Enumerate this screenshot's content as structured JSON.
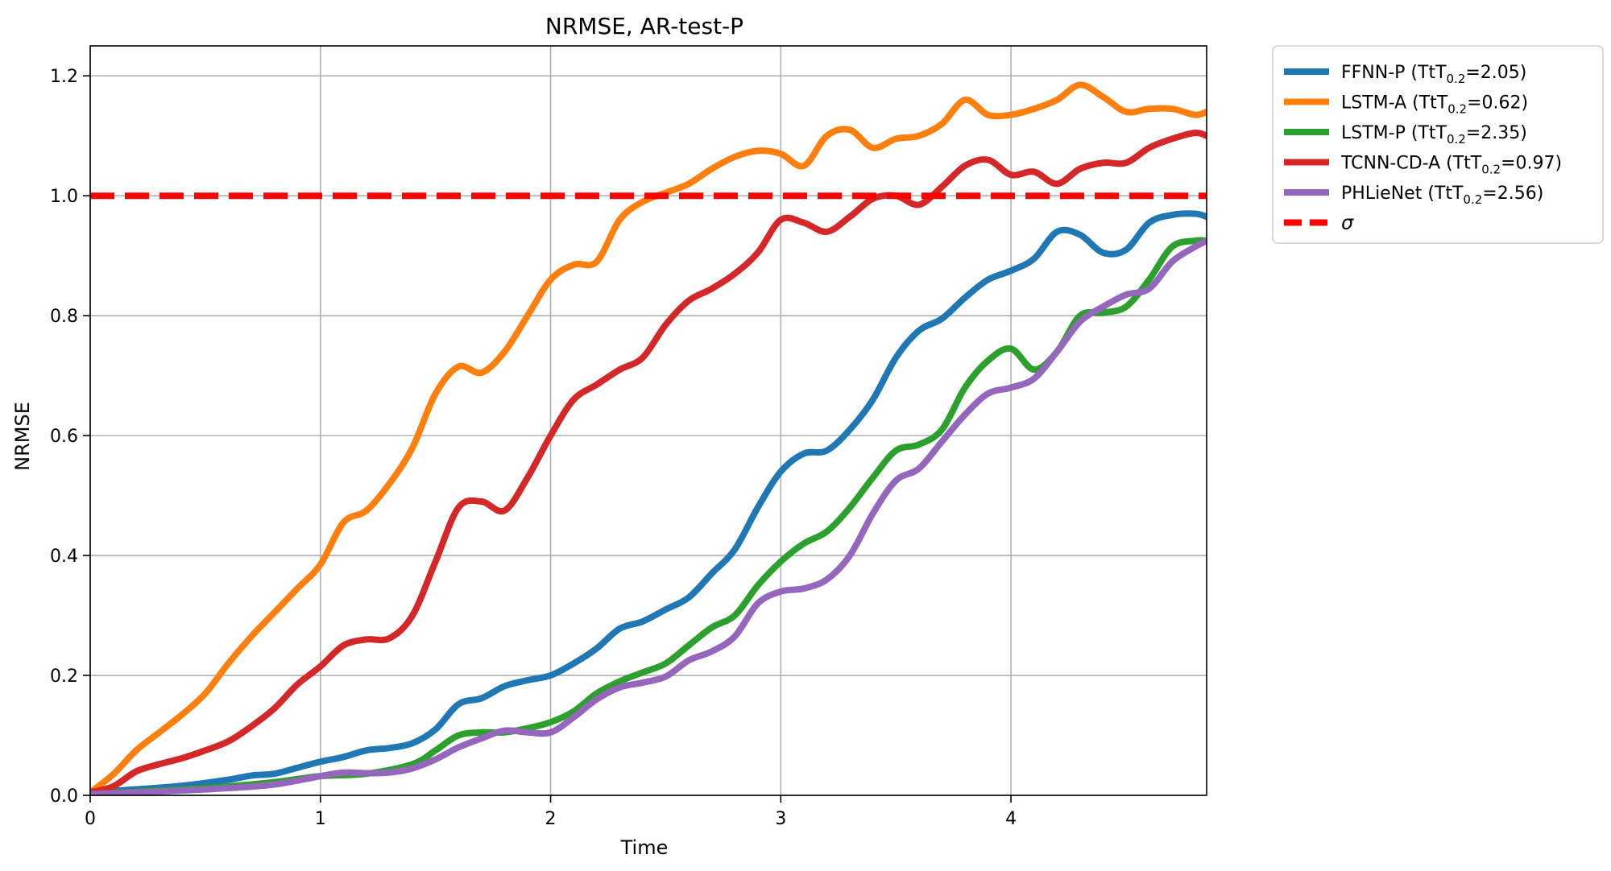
{
  "chart_data": {
    "type": "line",
    "title": "NRMSE, AR-test-P",
    "xlabel": "Time",
    "ylabel": "NRMSE",
    "xlim": [
      0,
      4.85
    ],
    "ylim": [
      0,
      1.25
    ],
    "x_ticks": [
      0,
      1,
      2,
      3,
      4
    ],
    "x_tick_labels": [
      "0",
      "1",
      "2",
      "3",
      "4"
    ],
    "y_ticks": [
      0.0,
      0.2,
      0.4,
      0.6,
      0.8,
      1.0,
      1.2
    ],
    "y_tick_labels": [
      "0.0",
      "0.2",
      "0.4",
      "0.6",
      "0.8",
      "1.0",
      "1.2"
    ],
    "grid": true,
    "legend_position": "outside-top-right",
    "series": [
      {
        "name": "FFNN-P (TtT",
        "tt_subscript": "0.2",
        "tt_value": "=2.05)",
        "color": "#1f77b4",
        "x": [
          0,
          0.2,
          0.4,
          0.6,
          0.7,
          0.8,
          0.9,
          1.0,
          1.1,
          1.2,
          1.3,
          1.4,
          1.5,
          1.6,
          1.7,
          1.8,
          1.9,
          2.0,
          2.1,
          2.2,
          2.3,
          2.4,
          2.5,
          2.6,
          2.7,
          2.8,
          2.9,
          3.0,
          3.1,
          3.2,
          3.3,
          3.4,
          3.5,
          3.6,
          3.7,
          3.8,
          3.9,
          4.0,
          4.1,
          4.2,
          4.3,
          4.4,
          4.5,
          4.6,
          4.7,
          4.8,
          4.85
        ],
        "y": [
          0.005,
          0.01,
          0.016,
          0.026,
          0.033,
          0.036,
          0.046,
          0.056,
          0.064,
          0.075,
          0.079,
          0.087,
          0.11,
          0.152,
          0.162,
          0.182,
          0.192,
          0.2,
          0.22,
          0.245,
          0.278,
          0.29,
          0.31,
          0.33,
          0.37,
          0.41,
          0.48,
          0.54,
          0.57,
          0.575,
          0.61,
          0.66,
          0.73,
          0.775,
          0.795,
          0.83,
          0.86,
          0.875,
          0.895,
          0.94,
          0.935,
          0.905,
          0.91,
          0.955,
          0.968,
          0.97,
          0.965
        ]
      },
      {
        "name": "LSTM-A (TtT",
        "tt_subscript": "0.2",
        "tt_value": "=0.62)",
        "color": "#ff7f0e",
        "x": [
          0,
          0.1,
          0.2,
          0.3,
          0.4,
          0.5,
          0.6,
          0.7,
          0.8,
          0.9,
          1.0,
          1.1,
          1.2,
          1.3,
          1.4,
          1.5,
          1.6,
          1.7,
          1.8,
          1.9,
          2.0,
          2.1,
          2.2,
          2.3,
          2.4,
          2.5,
          2.6,
          2.7,
          2.8,
          2.9,
          3.0,
          3.1,
          3.2,
          3.3,
          3.4,
          3.5,
          3.6,
          3.7,
          3.8,
          3.9,
          4.0,
          4.1,
          4.2,
          4.3,
          4.4,
          4.5,
          4.6,
          4.7,
          4.8,
          4.85
        ],
        "y": [
          0.005,
          0.035,
          0.075,
          0.105,
          0.135,
          0.17,
          0.22,
          0.265,
          0.305,
          0.345,
          0.385,
          0.455,
          0.475,
          0.52,
          0.58,
          0.67,
          0.715,
          0.705,
          0.74,
          0.8,
          0.86,
          0.885,
          0.89,
          0.96,
          0.99,
          1.005,
          1.02,
          1.045,
          1.065,
          1.075,
          1.07,
          1.05,
          1.1,
          1.11,
          1.08,
          1.095,
          1.1,
          1.12,
          1.16,
          1.135,
          1.135,
          1.145,
          1.16,
          1.185,
          1.165,
          1.14,
          1.145,
          1.145,
          1.135,
          1.14
        ]
      },
      {
        "name": "LSTM-P (TtT",
        "tt_subscript": "0.2",
        "tt_value": "=2.35)",
        "color": "#2ca02c",
        "x": [
          0,
          0.2,
          0.4,
          0.6,
          0.8,
          1.0,
          1.2,
          1.4,
          1.5,
          1.6,
          1.7,
          1.8,
          1.9,
          2.0,
          2.1,
          2.2,
          2.3,
          2.4,
          2.5,
          2.6,
          2.7,
          2.8,
          2.9,
          3.0,
          3.1,
          3.2,
          3.3,
          3.4,
          3.5,
          3.6,
          3.7,
          3.8,
          3.9,
          4.0,
          4.1,
          4.2,
          4.3,
          4.4,
          4.5,
          4.6,
          4.7,
          4.8,
          4.85
        ],
        "y": [
          0.003,
          0.006,
          0.01,
          0.015,
          0.022,
          0.032,
          0.036,
          0.052,
          0.075,
          0.1,
          0.105,
          0.105,
          0.112,
          0.122,
          0.14,
          0.17,
          0.19,
          0.205,
          0.22,
          0.25,
          0.28,
          0.3,
          0.35,
          0.39,
          0.42,
          0.44,
          0.48,
          0.53,
          0.575,
          0.585,
          0.61,
          0.68,
          0.725,
          0.745,
          0.71,
          0.74,
          0.8,
          0.805,
          0.815,
          0.86,
          0.915,
          0.925,
          0.925
        ]
      },
      {
        "name": "TCNN-CD-A (TtT",
        "tt_subscript": "0.2",
        "tt_value": "=0.97)",
        "color": "#d62728",
        "x": [
          0,
          0.1,
          0.2,
          0.3,
          0.4,
          0.5,
          0.6,
          0.7,
          0.8,
          0.9,
          1.0,
          1.1,
          1.2,
          1.3,
          1.4,
          1.5,
          1.6,
          1.7,
          1.8,
          1.9,
          2.0,
          2.1,
          2.2,
          2.3,
          2.4,
          2.5,
          2.6,
          2.7,
          2.8,
          2.9,
          3.0,
          3.1,
          3.2,
          3.3,
          3.4,
          3.5,
          3.6,
          3.7,
          3.8,
          3.9,
          4.0,
          4.1,
          4.2,
          4.3,
          4.4,
          4.5,
          4.6,
          4.7,
          4.8,
          4.85
        ],
        "y": [
          0.005,
          0.015,
          0.04,
          0.052,
          0.062,
          0.075,
          0.09,
          0.115,
          0.145,
          0.185,
          0.215,
          0.25,
          0.26,
          0.262,
          0.3,
          0.39,
          0.48,
          0.49,
          0.475,
          0.53,
          0.6,
          0.66,
          0.685,
          0.71,
          0.73,
          0.785,
          0.825,
          0.845,
          0.87,
          0.905,
          0.96,
          0.955,
          0.94,
          0.965,
          0.995,
          1.0,
          0.985,
          1.015,
          1.05,
          1.06,
          1.035,
          1.04,
          1.02,
          1.045,
          1.055,
          1.055,
          1.08,
          1.095,
          1.105,
          1.1
        ]
      },
      {
        "name": "PHLieNet (TtT",
        "tt_subscript": "0.2",
        "tt_value": "=2.56)",
        "color": "#9467bd",
        "x": [
          0,
          0.2,
          0.4,
          0.6,
          0.8,
          1.0,
          1.1,
          1.2,
          1.3,
          1.4,
          1.5,
          1.6,
          1.7,
          1.8,
          1.9,
          2.0,
          2.1,
          2.2,
          2.3,
          2.4,
          2.5,
          2.6,
          2.7,
          2.8,
          2.9,
          3.0,
          3.1,
          3.2,
          3.3,
          3.4,
          3.5,
          3.6,
          3.7,
          3.8,
          3.9,
          4.0,
          4.1,
          4.2,
          4.3,
          4.4,
          4.5,
          4.6,
          4.7,
          4.8,
          4.85
        ],
        "y": [
          0.002,
          0.005,
          0.008,
          0.012,
          0.018,
          0.032,
          0.038,
          0.037,
          0.038,
          0.045,
          0.06,
          0.08,
          0.095,
          0.108,
          0.105,
          0.105,
          0.13,
          0.16,
          0.18,
          0.188,
          0.198,
          0.225,
          0.24,
          0.265,
          0.32,
          0.34,
          0.345,
          0.36,
          0.4,
          0.47,
          0.525,
          0.545,
          0.59,
          0.635,
          0.67,
          0.68,
          0.695,
          0.74,
          0.79,
          0.815,
          0.835,
          0.845,
          0.89,
          0.915,
          0.925
        ]
      }
    ],
    "reference": {
      "label": "σ",
      "y": 1.0,
      "color": "#ff0000",
      "style": "dashed"
    }
  }
}
